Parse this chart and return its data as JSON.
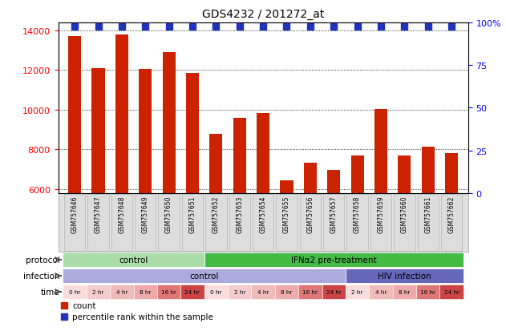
{
  "title": "GDS4232 / 201272_at",
  "samples": [
    "GSM757646",
    "GSM757647",
    "GSM757648",
    "GSM757649",
    "GSM757650",
    "GSM757651",
    "GSM757652",
    "GSM757653",
    "GSM757654",
    "GSM757655",
    "GSM757656",
    "GSM757657",
    "GSM757658",
    "GSM757659",
    "GSM757660",
    "GSM757661",
    "GSM757662"
  ],
  "counts": [
    13700,
    12100,
    13800,
    12050,
    12900,
    11850,
    8800,
    9600,
    9850,
    6450,
    7350,
    6950,
    7700,
    10050,
    7700,
    8150,
    7800
  ],
  "percentile_ranks": [
    100,
    100,
    100,
    100,
    100,
    100,
    100,
    100,
    100,
    100,
    100,
    100,
    100,
    100,
    100,
    100,
    100
  ],
  "ylim_left": [
    5800,
    14400
  ],
  "ylim_right": [
    0,
    100
  ],
  "yticks_left": [
    6000,
    8000,
    10000,
    12000,
    14000
  ],
  "yticks_right": [
    0,
    25,
    50,
    75,
    100
  ],
  "bar_color": "#cc2200",
  "dot_color": "#2233bb",
  "protocol_groups": [
    {
      "label": "control",
      "start": 0,
      "end": 6,
      "color": "#aaddaa"
    },
    {
      "label": "IFNα2 pre-treatment",
      "start": 6,
      "end": 17,
      "color": "#44bb44"
    }
  ],
  "infection_groups": [
    {
      "label": "control",
      "start": 0,
      "end": 12,
      "color": "#aaaadd"
    },
    {
      "label": "HIV infection",
      "start": 12,
      "end": 17,
      "color": "#6666bb"
    }
  ],
  "time_labels": [
    "0 hr",
    "2 hr",
    "4 hr",
    "8 hr",
    "16 hr",
    "24 hr",
    "0 hr",
    "2 hr",
    "4 hr",
    "8 hr",
    "16 hr",
    "24 hr",
    "2 hr",
    "4 hr",
    "8 hr",
    "16 hr",
    "24 hr"
  ],
  "time_colors": [
    "#f8dddd",
    "#f4cccc",
    "#f0bbbb",
    "#eeaaaa",
    "#e07777",
    "#cc4444",
    "#f8dddd",
    "#f4cccc",
    "#f0bbbb",
    "#eeaaaa",
    "#e07777",
    "#cc4444",
    "#f8dddd",
    "#f0bbbb",
    "#eeaaaa",
    "#e07777",
    "#cc4444"
  ],
  "legend_count_color": "#cc2200",
  "legend_dot_color": "#2233bb"
}
